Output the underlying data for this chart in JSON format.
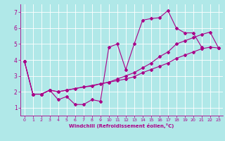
{
  "xlabel": "Windchill (Refroidissement éolien,°C)",
  "bg_color": "#b0e8e8",
  "line_color": "#aa0088",
  "grid_color": "#ffffff",
  "xlim": [
    -0.5,
    23.5
  ],
  "ylim": [
    0.5,
    7.5
  ],
  "xticks": [
    0,
    1,
    2,
    3,
    4,
    5,
    6,
    7,
    8,
    9,
    10,
    11,
    12,
    13,
    14,
    15,
    16,
    17,
    18,
    19,
    20,
    21,
    22,
    23
  ],
  "yticks": [
    1,
    2,
    3,
    4,
    5,
    6,
    7
  ],
  "line1": {
    "x": [
      0,
      1,
      2,
      3,
      4,
      5,
      6,
      7,
      8,
      9,
      10,
      11,
      12,
      13,
      14,
      15,
      16,
      17,
      18,
      19,
      20,
      21,
      22,
      23
    ],
    "y": [
      3.9,
      1.85,
      1.85,
      2.1,
      1.5,
      1.7,
      1.2,
      1.2,
      1.5,
      1.4,
      4.8,
      5.0,
      3.4,
      5.0,
      6.5,
      6.6,
      6.65,
      7.1,
      6.0,
      5.7,
      5.7,
      4.8,
      null,
      null
    ]
  },
  "line2": {
    "x": [
      0,
      1,
      2,
      3,
      4,
      5,
      6,
      7,
      8,
      9,
      10,
      11,
      12,
      13,
      14,
      15,
      16,
      17,
      18,
      19,
      20,
      21,
      22,
      23
    ],
    "y": [
      3.9,
      1.85,
      1.85,
      2.1,
      2.0,
      2.1,
      2.2,
      2.3,
      2.35,
      2.5,
      2.6,
      2.7,
      2.8,
      2.95,
      3.2,
      3.4,
      3.6,
      3.8,
      4.1,
      4.3,
      4.5,
      4.7,
      4.8,
      4.75
    ]
  },
  "line3": {
    "x": [
      0,
      1,
      2,
      3,
      4,
      5,
      10,
      11,
      12,
      13,
      14,
      15,
      16,
      17,
      18,
      19,
      20,
      21,
      22,
      23
    ],
    "y": [
      3.9,
      1.85,
      1.85,
      2.1,
      2.0,
      2.1,
      2.6,
      2.8,
      3.0,
      3.2,
      3.5,
      3.8,
      4.2,
      4.5,
      5.0,
      5.2,
      5.4,
      5.6,
      5.75,
      4.75
    ]
  }
}
